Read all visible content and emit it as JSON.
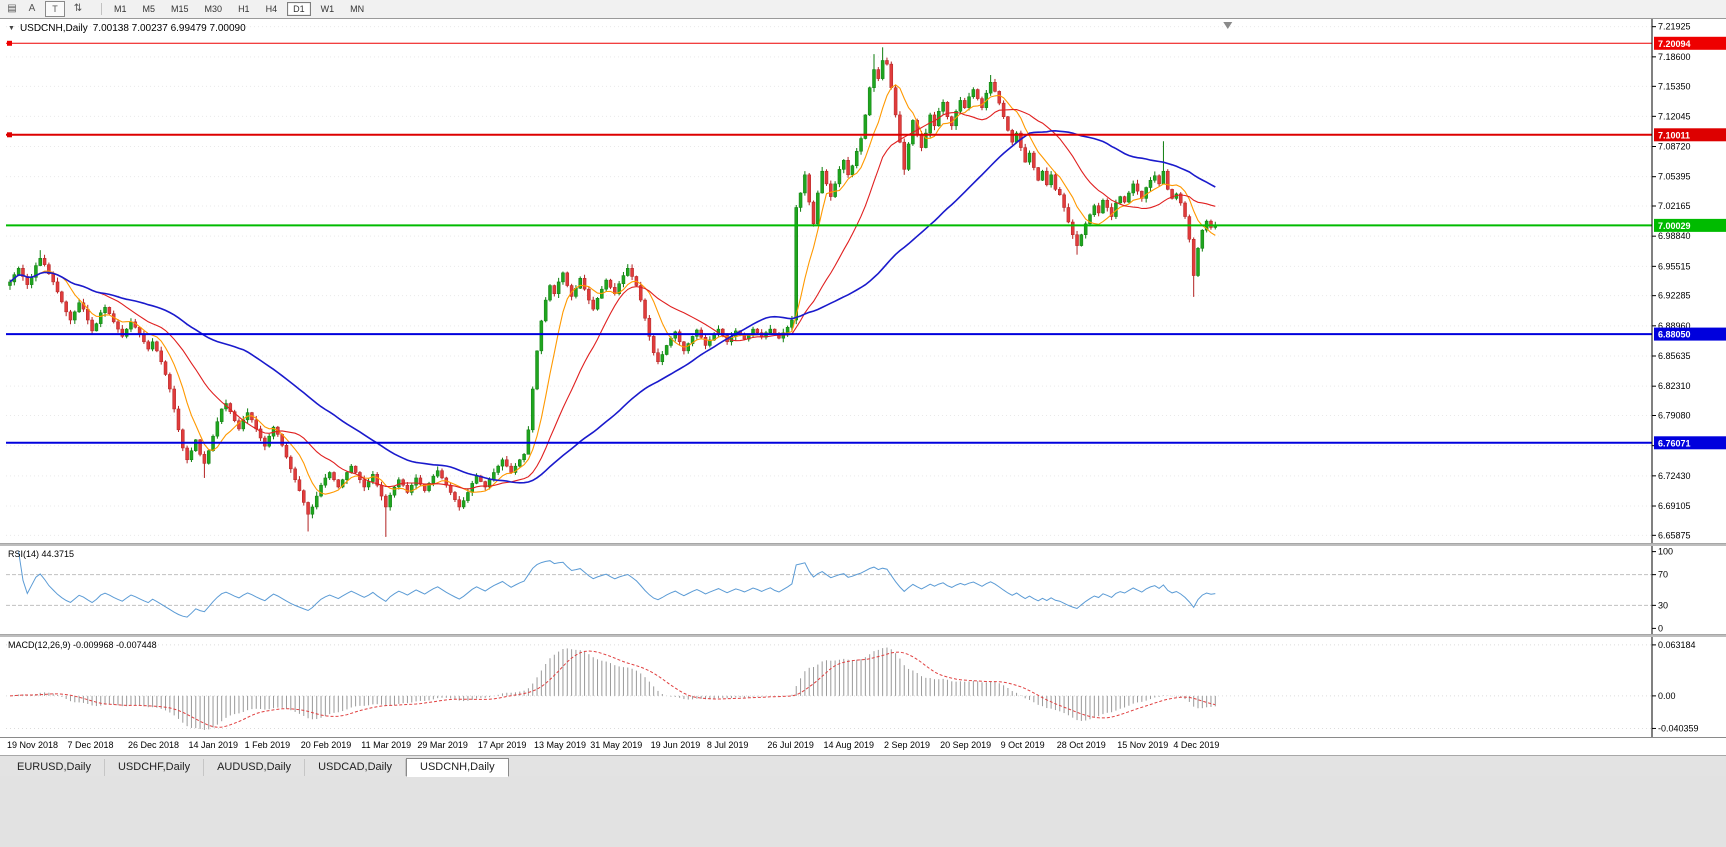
{
  "toolbar": {
    "icons": [
      {
        "name": "chart-list-icon",
        "glyph": "▤"
      },
      {
        "name": "cursor-mode-icon",
        "glyph": "A"
      },
      {
        "name": "templates-icon",
        "glyph": "T",
        "boxed": true
      },
      {
        "name": "chart-shift-icon",
        "glyph": "⇅"
      }
    ],
    "timeframes": [
      "M1",
      "M5",
      "M15",
      "M30",
      "H1",
      "H4",
      "D1",
      "W1",
      "MN"
    ],
    "active_timeframe": "D1"
  },
  "main_chart": {
    "symbol_label": "USDCNH,Daily",
    "ohlc_label": "7.00138 7.00237 6.99479 7.00090",
    "price_axis_labels": [
      "7.21925",
      "7.18600",
      "7.15350",
      "7.12045",
      "7.08720",
      "7.05395",
      "7.02165",
      "6.98840",
      "6.95515",
      "6.92285",
      "6.88960",
      "6.85635",
      "6.82310",
      "6.79080",
      "6.75755",
      "6.72430",
      "6.69105",
      "6.65875"
    ]
  },
  "chart_data": {
    "type": "candlestick",
    "symbol": "USDCNH",
    "timeframe": "Daily",
    "price_range": {
      "min": 6.6525,
      "max": 7.2255
    },
    "x_labels": [
      "19 Nov 2018",
      "7 Dec 2018",
      "26 Dec 2018",
      "14 Jan 2019",
      "1 Feb 2019",
      "20 Feb 2019",
      "11 Mar 2019",
      "29 Mar 2019",
      "17 Apr 2019",
      "13 May 2019",
      "31 May 2019",
      "19 Jun 2019",
      "8 Jul 2019",
      "26 Jul 2019",
      "14 Aug 2019",
      "2 Sep 2019",
      "20 Sep 2019",
      "9 Oct 2019",
      "28 Oct 2019",
      "15 Nov 2019",
      "4 Dec 2019"
    ],
    "x_label_indices": [
      0,
      14,
      28,
      42,
      55,
      68,
      82,
      95,
      109,
      122,
      135,
      149,
      162,
      176,
      189,
      203,
      216,
      230,
      243,
      257,
      270
    ],
    "first_open": 6.934,
    "closes": [
      6.938,
      6.946,
      6.953,
      6.944,
      6.935,
      6.943,
      6.956,
      6.964,
      6.957,
      6.947,
      6.938,
      6.927,
      6.916,
      6.905,
      6.896,
      6.905,
      6.915,
      6.908,
      6.896,
      6.884,
      6.892,
      6.904,
      6.91,
      6.903,
      6.894,
      6.886,
      6.878,
      6.886,
      6.894,
      6.888,
      6.88,
      6.872,
      6.864,
      6.872,
      6.862,
      6.85,
      6.836,
      6.82,
      6.798,
      6.775,
      6.755,
      6.742,
      6.752,
      6.764,
      6.748,
      6.738,
      6.752,
      6.768,
      6.784,
      6.798,
      6.804,
      6.795,
      6.785,
      6.776,
      6.786,
      6.794,
      6.786,
      6.776,
      6.766,
      6.757,
      6.768,
      6.778,
      6.77,
      6.758,
      6.745,
      6.732,
      6.72,
      6.708,
      6.695,
      6.682,
      6.69,
      6.702,
      6.714,
      6.722,
      6.728,
      6.72,
      6.712,
      6.72,
      6.728,
      6.735,
      6.728,
      6.72,
      6.712,
      6.718,
      6.726,
      6.714,
      6.702,
      6.69,
      6.703,
      6.712,
      6.72,
      6.714,
      6.706,
      6.714,
      6.722,
      6.715,
      6.708,
      6.716,
      6.724,
      6.73,
      6.722,
      6.714,
      6.706,
      6.698,
      6.69,
      6.697,
      6.706,
      6.716,
      6.724,
      6.718,
      6.712,
      6.72,
      6.728,
      6.735,
      6.742,
      6.735,
      6.728,
      6.735,
      6.742,
      6.748,
      6.775,
      6.82,
      6.862,
      6.895,
      6.918,
      6.934,
      6.925,
      6.938,
      6.948,
      6.934,
      6.922,
      6.931,
      6.942,
      6.93,
      6.918,
      6.908,
      6.92,
      6.93,
      6.94,
      6.932,
      6.925,
      6.936,
      6.945,
      6.953,
      6.944,
      6.934,
      6.918,
      6.898,
      6.878,
      6.86,
      6.85,
      6.858,
      6.868,
      6.876,
      6.883,
      6.872,
      6.862,
      6.87,
      6.878,
      6.885,
      6.877,
      6.868,
      6.874,
      6.88,
      6.886,
      6.879,
      6.872,
      6.878,
      6.884,
      6.88,
      6.875,
      6.88,
      6.886,
      6.882,
      6.877,
      6.882,
      6.886,
      6.88,
      6.876,
      6.882,
      6.888,
      6.896,
      7.02,
      7.036,
      7.056,
      7.026,
      7.002,
      7.036,
      7.06,
      7.046,
      7.032,
      7.046,
      7.062,
      7.072,
      7.056,
      7.066,
      7.082,
      7.096,
      7.122,
      7.152,
      7.172,
      7.162,
      7.182,
      7.178,
      7.152,
      7.122,
      7.092,
      7.062,
      7.09,
      7.116,
      7.1,
      7.086,
      7.102,
      7.122,
      7.11,
      7.126,
      7.136,
      7.12,
      7.11,
      7.126,
      7.138,
      7.13,
      7.142,
      7.15,
      7.14,
      7.13,
      7.146,
      7.158,
      7.148,
      7.135,
      7.12,
      7.105,
      7.092,
      7.102,
      7.086,
      7.07,
      7.08,
      7.064,
      7.05,
      7.06,
      7.045,
      7.056,
      7.04,
      7.034,
      7.02,
      7.004,
      6.99,
      6.978,
      6.99,
      7.002,
      7.012,
      7.022,
      7.014,
      7.028,
      7.02,
      7.01,
      7.025,
      7.032,
      7.026,
      7.036,
      7.046,
      7.038,
      7.03,
      7.042,
      7.05,
      7.055,
      7.046,
      7.06,
      7.04,
      7.03,
      7.035,
      7.025,
      7.01,
      6.985,
      6.945,
      6.975,
      6.995,
      7.005,
      6.998,
      7.0009
    ],
    "wick_overrides": {
      "7": {
        "high": 6.973
      },
      "45": {
        "low": 6.722
      },
      "69": {
        "low": 6.663
      },
      "87": {
        "low": 6.657
      },
      "104": {
        "low": 6.686
      },
      "120": {
        "low": 6.749
      },
      "200": {
        "high": 7.189
      },
      "202": {
        "high": 7.1965
      },
      "207": {
        "low": 7.056
      },
      "227": {
        "high": 7.166
      },
      "247": {
        "low": 6.968
      },
      "267": {
        "high": 7.093
      },
      "274": {
        "low": 6.9215
      }
    },
    "candle_colors": {
      "up_fill": "#1fa51f",
      "up_stroke": "#0e7d0e",
      "down_fill": "#e03c3c",
      "down_stroke": "#b22222"
    },
    "moving_averages": [
      {
        "name": "MA-fast",
        "period": 8,
        "color": "#ff9900"
      },
      {
        "name": "MA-mid",
        "period": 21,
        "color": "#e02020"
      },
      {
        "name": "MA-slow",
        "period": 55,
        "color": "#1a1acc"
      }
    ],
    "hlines": [
      {
        "price": 7.20094,
        "label": "7.20094",
        "color": "#ee0000",
        "thickness": 1,
        "left_marker": true
      },
      {
        "price": 7.10011,
        "label": "7.10011",
        "color": "#dd0000",
        "thickness": 2,
        "left_marker": true
      },
      {
        "price": 7.00029,
        "label": "7.00029",
        "color": "#00bb00",
        "thickness": 2,
        "left_marker": false
      },
      {
        "price": 6.8805,
        "label": "6.88050",
        "color": "#0000dd",
        "thickness": 2,
        "left_marker": false
      },
      {
        "price": 6.76071,
        "label": "6.76071",
        "color": "#0000dd",
        "thickness": 2,
        "left_marker": false
      }
    ],
    "indicators": {
      "rsi": {
        "title": "RSI(14) 44.3715",
        "period": 14,
        "value": 44.3715,
        "levels": [
          "100",
          "70",
          "30",
          "0"
        ],
        "level_lines": [
          70,
          30
        ],
        "line_color": "#5b9bd5",
        "range": {
          "min": -6,
          "max": 106
        }
      },
      "macd": {
        "title": "MACD(12,26,9) -0.009968 -0.007448",
        "fast": 12,
        "slow": 26,
        "signal": 9,
        "values": [
          -0.009968,
          -0.007448
        ],
        "axis_labels": [
          "0.063184",
          "0.00",
          "-0.040359"
        ],
        "histogram_color": "#9a9a9a",
        "signal_color": "#e04040",
        "range": {
          "min": -0.046,
          "max": 0.068
        }
      }
    }
  },
  "tabs": [
    "EURUSD,Daily",
    "USDCHF,Daily",
    "AUDUSD,Daily",
    "USDCAD,Daily",
    "USDCNH,Daily"
  ],
  "active_tab": "USDCNH,Daily"
}
